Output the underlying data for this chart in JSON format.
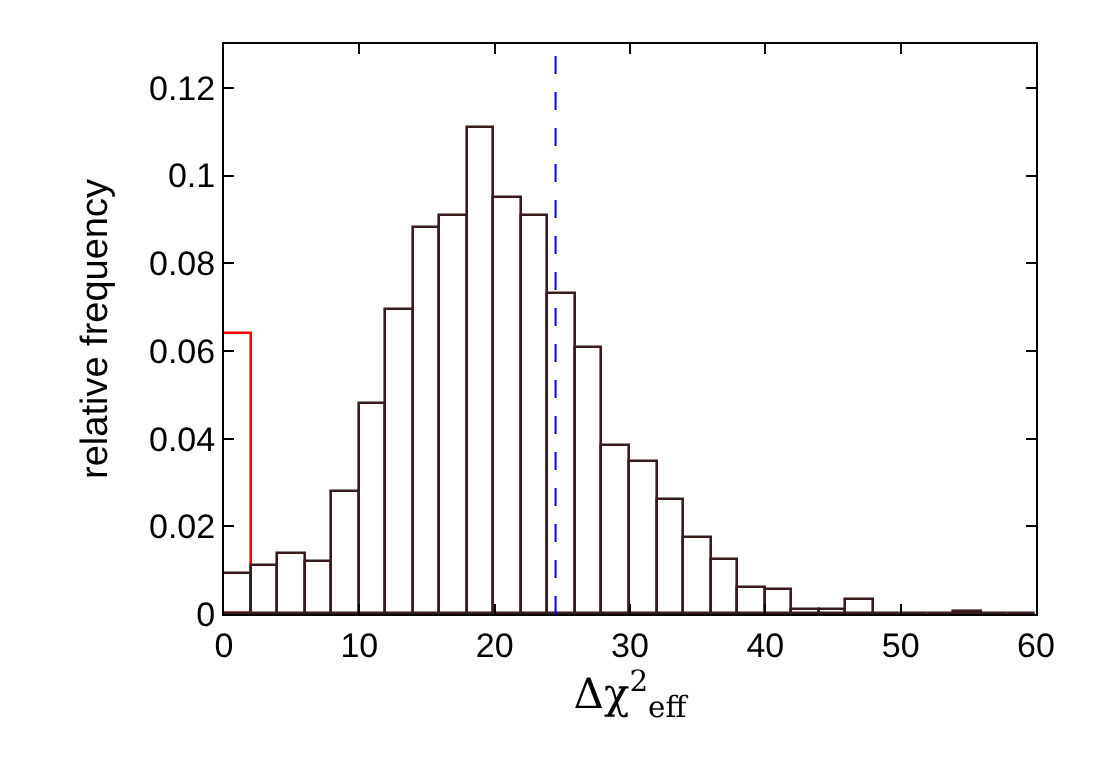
{
  "chart_data": {
    "type": "histogram",
    "xlabel": "Δχ$^{2}$$_{eff}$",
    "ylabel": "relative frequency",
    "bins": [
      0,
      2,
      4,
      6,
      8,
      10,
      12,
      14,
      16,
      18,
      20,
      22,
      24,
      26,
      28,
      30,
      32,
      34,
      36,
      38,
      40,
      42,
      44,
      46,
      48,
      50,
      52,
      54,
      56,
      58,
      60
    ],
    "series": [
      {
        "color": "#3a1c1c",
        "values": [
          0.009,
          0.011,
          0.0135,
          0.012,
          0.028,
          0.048,
          0.0695,
          0.088,
          0.091,
          0.111,
          0.095,
          0.091,
          0.073,
          0.0605,
          0.0385,
          0.0345,
          0.026,
          0.0175,
          0.0125,
          0.006,
          0.0055,
          0.001,
          0.001,
          0.003,
          0,
          0,
          0,
          0.0005,
          0,
          0
        ]
      },
      {
        "color": "#ff0000",
        "values": [
          0.064,
          null,
          null,
          null,
          null,
          null,
          null,
          null,
          null,
          null,
          null,
          null,
          null,
          null,
          null,
          null,
          null,
          null,
          null,
          null,
          null,
          null,
          null,
          null,
          null,
          null,
          null,
          null,
          null,
          null
        ]
      }
    ],
    "xlim": [
      0,
      60
    ],
    "xticks": [
      0,
      10,
      20,
      30,
      40,
      50,
      60
    ],
    "ylim": [
      0,
      0.13
    ],
    "yticks": [
      0,
      0.02,
      0.04,
      0.06,
      0.08,
      {
        "value": 0.1,
        "label": "0.1"
      },
      0.12
    ],
    "ref_lines": [
      {
        "axis": "x",
        "value": 24.5,
        "color": "#0000ff",
        "line_style": "dashed"
      }
    ]
  }
}
